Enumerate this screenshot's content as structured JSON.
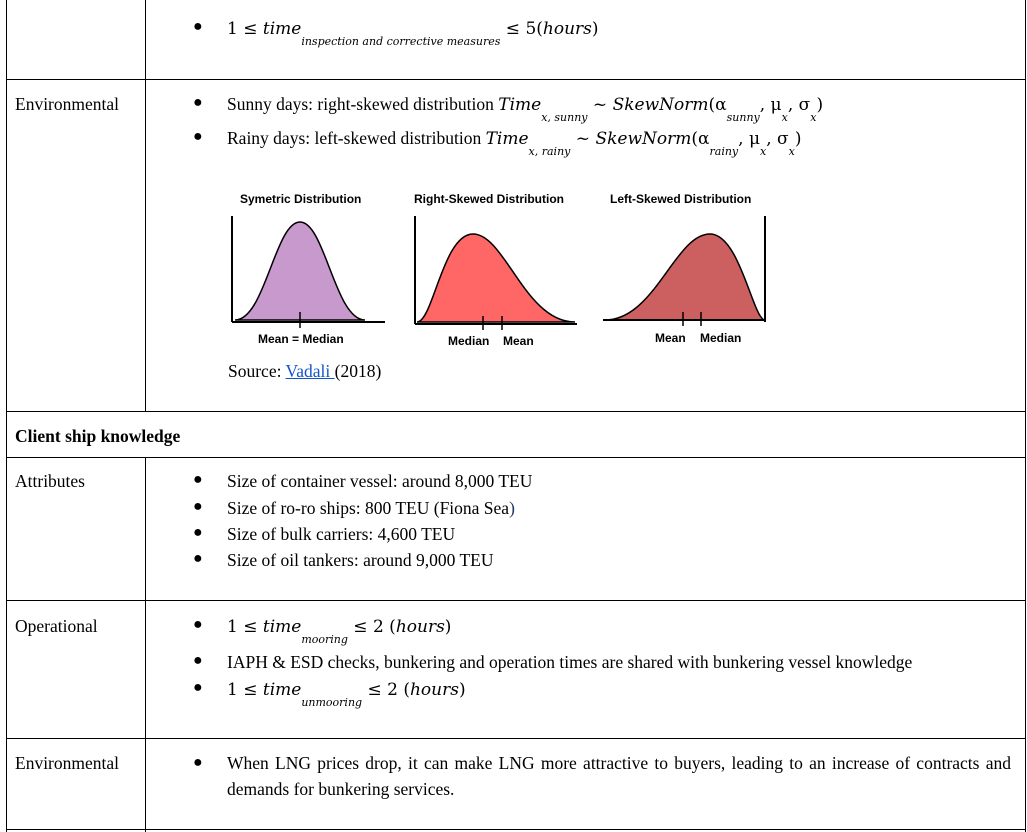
{
  "row_top": {
    "inequality_lhs": "1 ≤ ",
    "var": "time",
    "sub": "inspection and corrective measures",
    "inequality_rhs": " ≤ 5(",
    "unit": "hours",
    "close": ")"
  },
  "environmental_1": {
    "label": "Environmental",
    "sunny_text": "Sunny days: right-skewed distribution ",
    "sunny_var": "Time",
    "sunny_sub": "x, sunny",
    "sunny_rel": " ~ ",
    "sunny_fn": "SkewNorm",
    "sunny_args_open": "(α",
    "sunny_alpha_sub": "sunny",
    "sunny_mu": ", μ",
    "sunny_mu_sub": "x",
    "sunny_sigma": ",  σ",
    "sunny_sigma_sub": "x",
    "sunny_close": ")",
    "rainy_text": "Rainy days: left-skewed distribution ",
    "rainy_var": "Time",
    "rainy_sub": "x, rainy",
    "rainy_rel": " ~ ",
    "rainy_fn": "SkewNorm",
    "rainy_args_open": "(α",
    "rainy_alpha_sub": "rainy",
    "rainy_mu": ", μ",
    "rainy_mu_sub": "x",
    "rainy_sigma": ",  σ",
    "rainy_sigma_sub": "x",
    "rainy_close": ")",
    "figure": {
      "symmetric": {
        "title": "Symetric Distribution",
        "label": "Mean = Median",
        "color": "#c899cc"
      },
      "right": {
        "title": "Right-Skewed Distribution",
        "label_left": "Median",
        "label_right": "Mean",
        "color": "#ff6666"
      },
      "left": {
        "title": "Left-Skewed Distribution",
        "label_left": "Mean",
        "label_right": "Median",
        "color": "#cc6060"
      }
    },
    "source_prefix": "Source: ",
    "source_link": "Vadali ",
    "source_suffix": "(2018)"
  },
  "section_header": "Client ship knowledge",
  "attributes": {
    "label": "Attributes",
    "items": [
      "Size of container vessel: around 8,000 TEU",
      "Size of ro-ro ships: 800 TEU (Fiona Sea",
      "Size of bulk carriers: 4,600 TEU",
      "Size of oil tankers: around 9,000 TEU"
    ],
    "item2_tail": ")"
  },
  "operational": {
    "label": "Operational",
    "mooring": {
      "lhs": "1 ≤ ",
      "var": "time",
      "sub": "mooring",
      "rhs": " ≤ 2 (",
      "unit": "hours",
      "close": ")"
    },
    "shared_text": "IAPH & ESD checks, bunkering and operation times are shared with bunkering vessel knowledge",
    "unmooring": {
      "lhs": "1 ≤ ",
      "var": "time",
      "sub": "unmooring",
      "rhs": " ≤ 2 (",
      "unit": "hours",
      "close": ")"
    }
  },
  "environmental_2": {
    "label": "Environmental",
    "text": "When LNG prices drop, it can make LNG more attractive to buyers, leading to an increase of contracts and demands for bunkering services."
  },
  "bullet_char": "●"
}
